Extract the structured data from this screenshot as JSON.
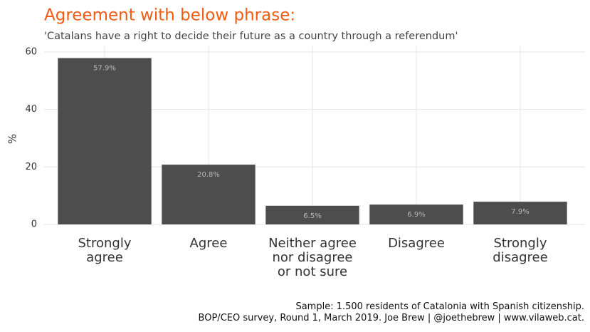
{
  "chart_data": {
    "type": "bar",
    "title": "Agreement with below phrase:",
    "subtitle": "'Catalans have a right to decide their future as a country through a referendum'",
    "y_label": "%",
    "categories": [
      "Strongly\nagree",
      "Agree",
      "Neither agree\nnor disagree\nor not sure",
      "Disagree",
      "Strongly\ndisagree"
    ],
    "values": [
      57.9,
      20.8,
      6.5,
      6.9,
      7.9
    ],
    "value_labels": [
      "57.9%",
      "20.8%",
      "6.5%",
      "6.9%",
      "7.9%"
    ],
    "color": "#4d4d4d",
    "ylim": [
      0,
      60
    ],
    "yticks": [
      0,
      20,
      40,
      60
    ],
    "grid": true,
    "caption": [
      "Sample: 1.500 residents of Catalonia with Spanish citizenship.",
      "BOP/CEO survey, Round 1, March 2019. Joe Brew | @joethebrew | www.vilaweb.cat."
    ]
  }
}
